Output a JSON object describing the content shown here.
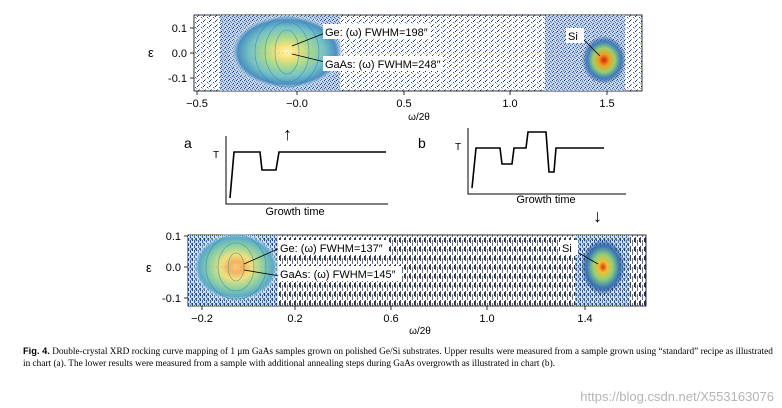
{
  "figure": {
    "top_plot": {
      "y_label": "ε",
      "x_label": "ω/2θ",
      "y_ticks": [
        "0.1",
        "0.0",
        "-0.1"
      ],
      "x_ticks": [
        "−0.5",
        "−0.0",
        "0.5",
        "1.0",
        "1.5"
      ],
      "annotation_ge": "Ge: (ω) FWHM=198″",
      "annotation_gaas": "GaAs: (ω) FWHM=248″",
      "annotation_si": "Si"
    },
    "bottom_plot": {
      "y_label": "ε",
      "x_label": "ω/2θ",
      "y_ticks": [
        "0.1",
        "0.0",
        "-0.1"
      ],
      "x_ticks": [
        "−0.2",
        "0.2",
        "0.6",
        "1.0",
        "1.4"
      ],
      "annotation_ge": "Ge: (ω) FWHM=137″",
      "annotation_gaas": "GaAs: (ω) FWHM=145″",
      "annotation_si": "Si"
    },
    "recipe_a": {
      "label": "a",
      "y_axis": "T",
      "x_axis": "Growth time"
    },
    "recipe_b": {
      "label": "b",
      "y_axis": "T",
      "x_axis": "Growth time"
    },
    "arrow_up": "↑",
    "arrow_down": "↓"
  },
  "caption": {
    "label": "Fig. 4.",
    "text": " Double-crystal XRD rocking curve mapping of 1 μm GaAs samples grown on polished Ge/Si substrates. Upper results were measured from a sample grown using “standard” recipe as illustrated in chart (a). The lower results were measured from a sample with additional annealing steps during GaAs overgrowth as illustrated in chart (b)."
  },
  "watermark": "https://blog.csdn.net/X553163076",
  "colors": {
    "noise": "#2c5a9c",
    "ring_outer": "#5fb3c8",
    "ring_mid": "#8fd08a",
    "ring_inner": "#f0e060",
    "hot": "#e03a1a"
  }
}
